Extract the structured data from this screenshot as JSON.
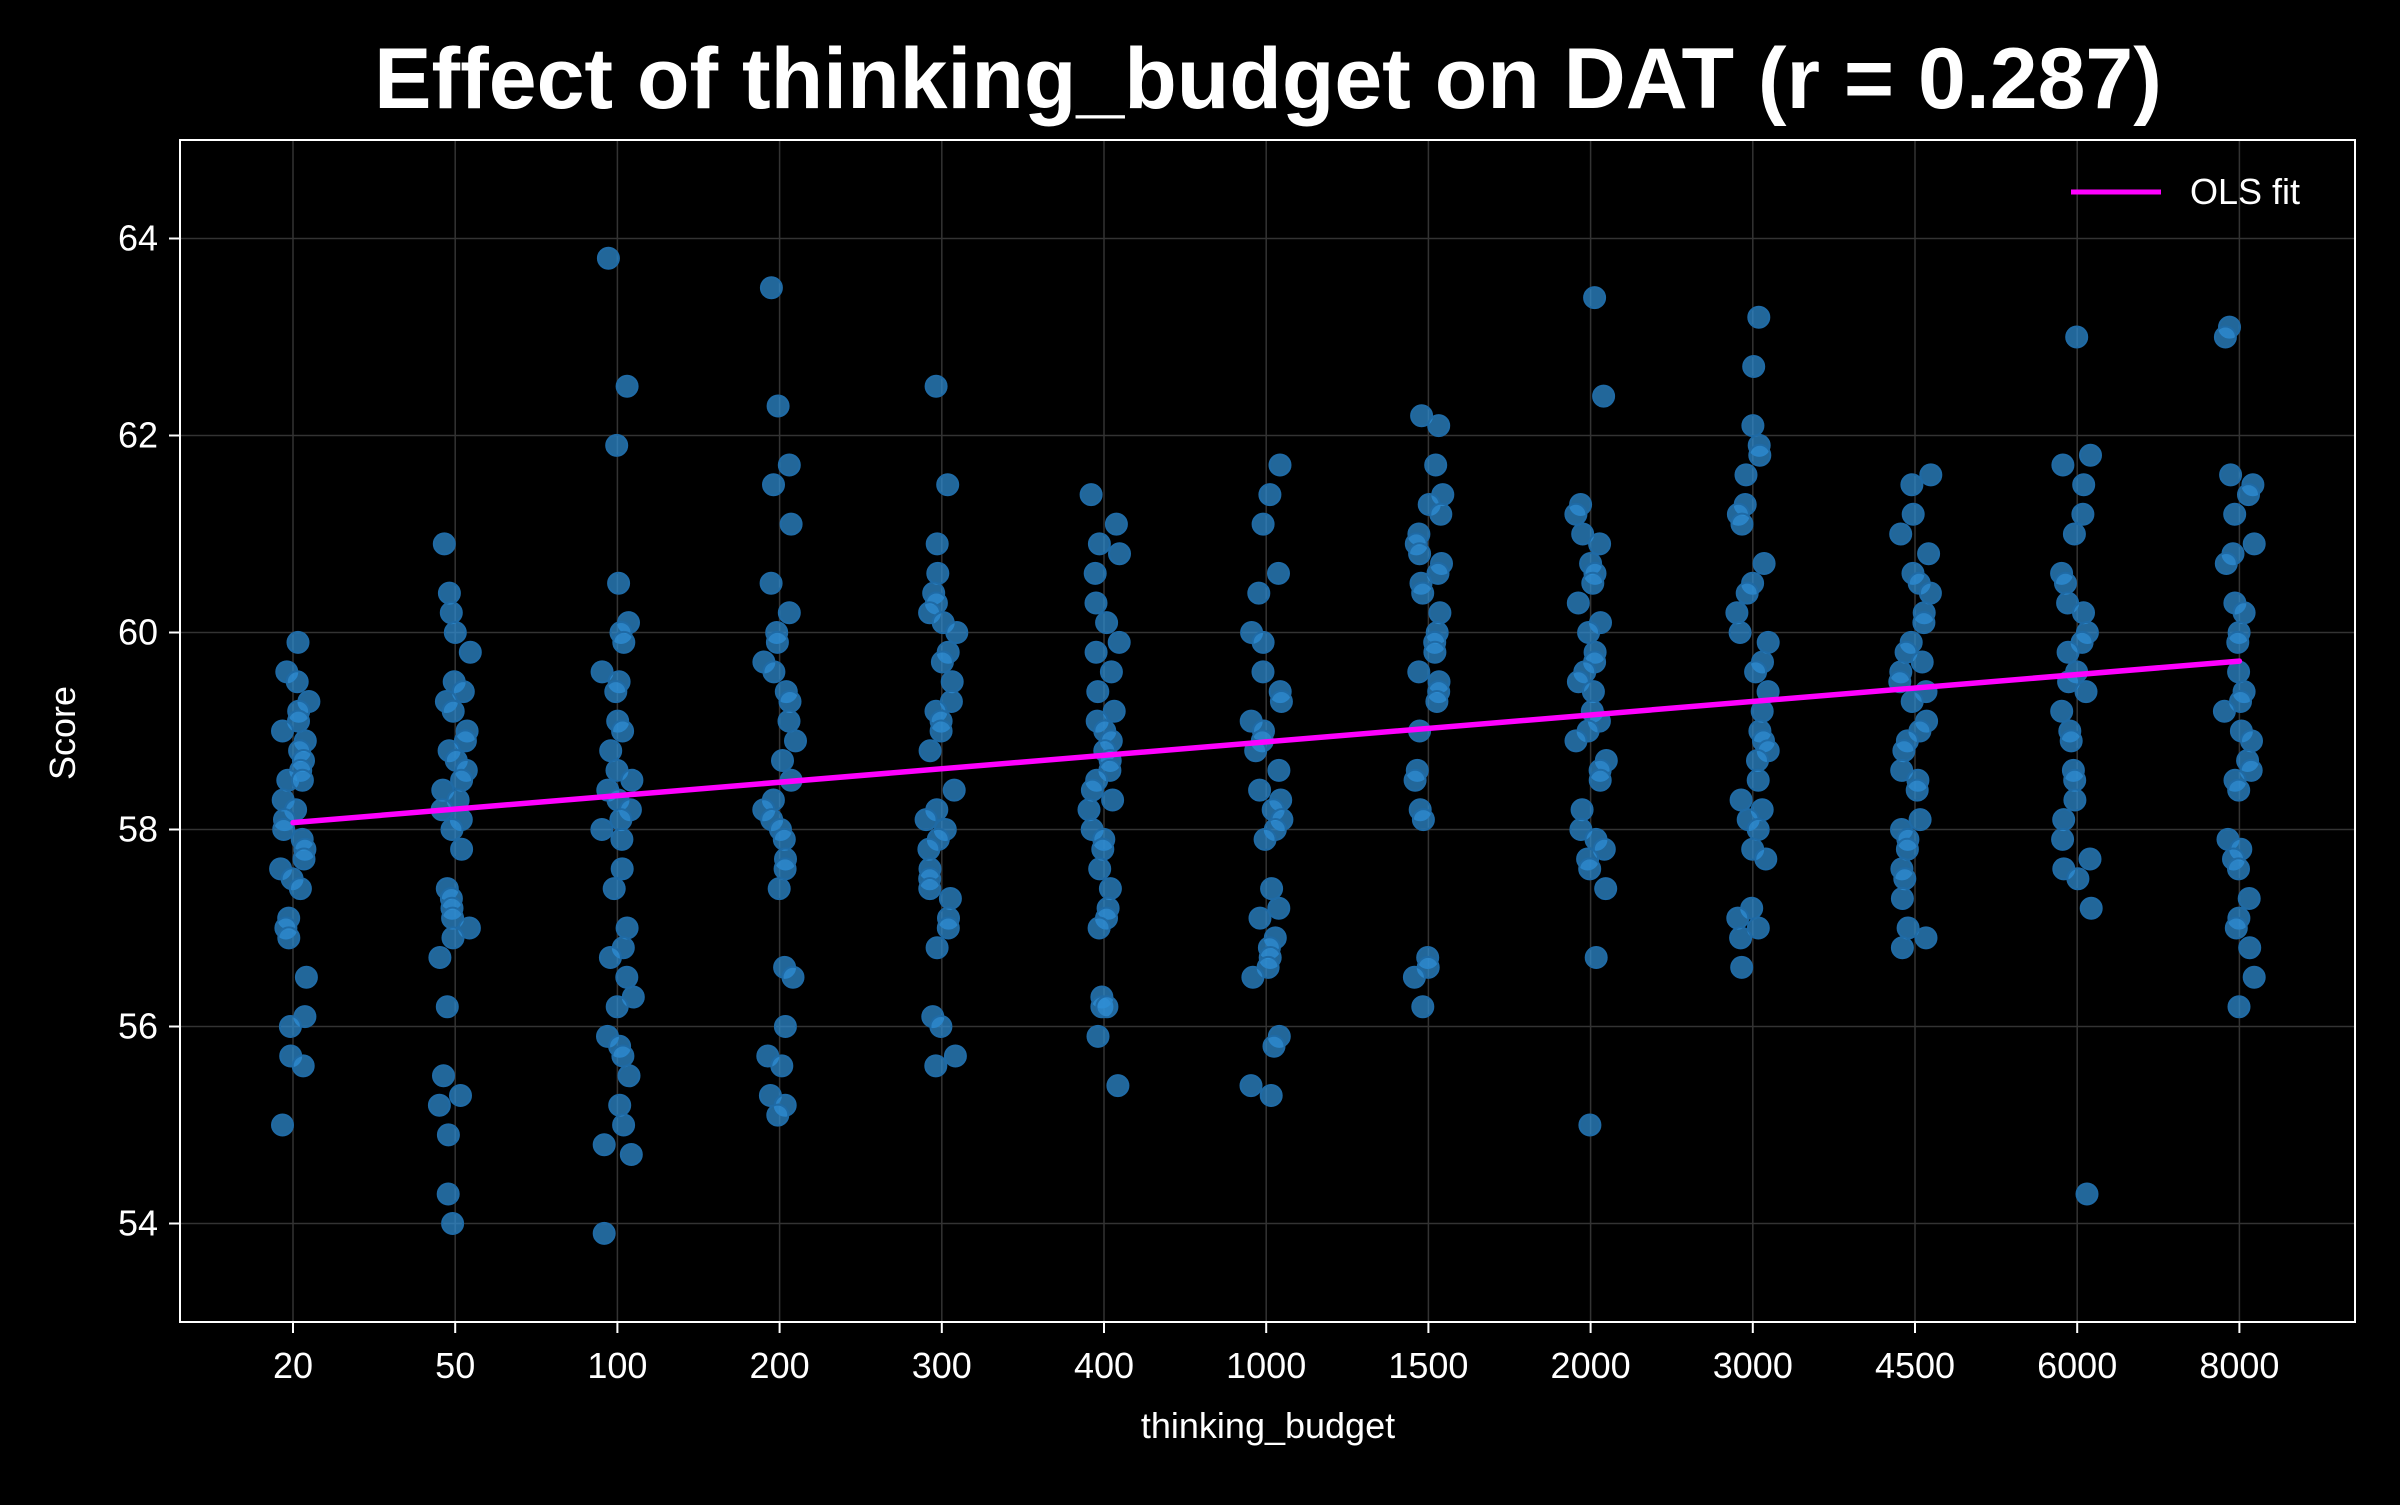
{
  "chart_data": {
    "type": "scatter",
    "title": "Effect of thinking_budget on DAT (r = 0.287)",
    "xlabel": "thinking_budget",
    "ylabel": "Score",
    "categories": [
      "20",
      "50",
      "100",
      "200",
      "300",
      "400",
      "1000",
      "1500",
      "2000",
      "3000",
      "4500",
      "6000",
      "8000"
    ],
    "ylim": [
      53,
      65
    ],
    "yticks": [
      54,
      56,
      58,
      60,
      62,
      64
    ],
    "grid": true,
    "legend": {
      "location": "top-right",
      "entries": [
        "OLS fit"
      ]
    },
    "colors": {
      "background": "#000000",
      "points": "#2f8fd6",
      "fit": "#ff00ff",
      "text": "#ffffff",
      "grid": "#333333"
    },
    "points": [
      {
        "category": "20",
        "values": [
          59.9,
          59.6,
          59.5,
          59.3,
          59.2,
          59.1,
          59.0,
          58.9,
          58.8,
          58.7,
          58.6,
          58.5,
          58.5,
          58.3,
          58.2,
          58.1,
          58.0,
          57.9,
          57.8,
          57.7,
          57.6,
          57.5,
          57.4,
          57.1,
          57.0,
          56.9,
          56.5,
          56.1,
          56.0,
          55.7,
          55.6,
          55.0
        ]
      },
      {
        "category": "50",
        "values": [
          60.9,
          60.4,
          60.2,
          60.0,
          59.8,
          59.5,
          59.4,
          59.3,
          59.2,
          59.0,
          58.9,
          58.8,
          58.7,
          58.6,
          58.5,
          58.4,
          58.3,
          58.2,
          58.1,
          58.0,
          57.8,
          57.4,
          57.3,
          57.2,
          57.1,
          57.0,
          56.9,
          56.7,
          56.2,
          55.5,
          55.3,
          55.2,
          54.9,
          54.3,
          54.0
        ]
      },
      {
        "category": "100",
        "values": [
          63.8,
          62.5,
          61.9,
          60.5,
          60.1,
          60.0,
          59.9,
          59.6,
          59.5,
          59.4,
          59.1,
          59.0,
          58.8,
          58.6,
          58.5,
          58.4,
          58.3,
          58.2,
          58.1,
          58.0,
          57.9,
          57.6,
          57.4,
          57.0,
          56.8,
          56.7,
          56.5,
          56.3,
          56.2,
          55.9,
          55.8,
          55.7,
          55.5,
          55.2,
          55.0,
          54.8,
          54.7,
          53.9
        ]
      },
      {
        "category": "200",
        "values": [
          63.5,
          62.3,
          61.7,
          61.5,
          61.1,
          60.5,
          60.2,
          60.0,
          59.9,
          59.7,
          59.6,
          59.4,
          59.3,
          59.1,
          58.9,
          58.7,
          58.5,
          58.3,
          58.2,
          58.1,
          58.0,
          57.9,
          57.7,
          57.6,
          57.4,
          56.6,
          56.5,
          56.0,
          55.7,
          55.6,
          55.3,
          55.2,
          55.1
        ]
      },
      {
        "category": "300",
        "values": [
          62.5,
          61.5,
          60.9,
          60.6,
          60.4,
          60.3,
          60.2,
          60.1,
          60.0,
          59.8,
          59.7,
          59.5,
          59.3,
          59.2,
          59.1,
          59.0,
          58.8,
          58.4,
          58.2,
          58.1,
          58.0,
          57.9,
          57.8,
          57.6,
          57.5,
          57.4,
          57.3,
          57.1,
          57.0,
          56.8,
          56.1,
          56.0,
          55.7,
          55.6
        ]
      },
      {
        "category": "400",
        "values": [
          61.4,
          61.1,
          60.9,
          60.8,
          60.6,
          60.3,
          60.1,
          59.9,
          59.8,
          59.6,
          59.4,
          59.2,
          59.1,
          59.0,
          58.9,
          58.8,
          58.7,
          58.6,
          58.5,
          58.4,
          58.3,
          58.2,
          58.0,
          57.9,
          57.8,
          57.6,
          57.4,
          57.2,
          57.1,
          57.0,
          56.3,
          56.2,
          56.2,
          55.9,
          55.4
        ]
      },
      {
        "category": "1000",
        "values": [
          61.7,
          61.4,
          61.1,
          60.6,
          60.4,
          60.0,
          59.9,
          59.6,
          59.4,
          59.3,
          59.1,
          59.0,
          58.9,
          58.8,
          58.6,
          58.4,
          58.3,
          58.2,
          58.1,
          58.0,
          57.9,
          57.4,
          57.2,
          57.1,
          56.9,
          56.8,
          56.7,
          56.6,
          56.5,
          55.9,
          55.8,
          55.4,
          55.3
        ]
      },
      {
        "category": "1500",
        "values": [
          62.2,
          62.1,
          61.7,
          61.4,
          61.3,
          61.2,
          61.0,
          60.9,
          60.8,
          60.7,
          60.6,
          60.5,
          60.4,
          60.2,
          60.0,
          59.9,
          59.8,
          59.6,
          59.5,
          59.4,
          59.3,
          59.0,
          58.6,
          58.5,
          58.2,
          58.1,
          56.7,
          56.6,
          56.5,
          56.2
        ]
      },
      {
        "category": "2000",
        "values": [
          63.4,
          62.4,
          61.3,
          61.2,
          61.0,
          60.9,
          60.7,
          60.6,
          60.5,
          60.3,
          60.1,
          60.0,
          59.8,
          59.7,
          59.6,
          59.5,
          59.4,
          59.2,
          59.1,
          59.0,
          58.9,
          58.7,
          58.6,
          58.5,
          58.2,
          58.0,
          57.9,
          57.8,
          57.7,
          57.6,
          57.4,
          56.7,
          55.0
        ]
      },
      {
        "category": "3000",
        "values": [
          63.2,
          62.7,
          62.1,
          61.9,
          61.8,
          61.6,
          61.3,
          61.2,
          61.1,
          60.7,
          60.5,
          60.4,
          60.2,
          60.0,
          59.9,
          59.7,
          59.6,
          59.4,
          59.2,
          59.0,
          58.9,
          58.8,
          58.7,
          58.5,
          58.3,
          58.2,
          58.1,
          58.0,
          57.8,
          57.7,
          57.2,
          57.1,
          57.0,
          56.9,
          56.6
        ]
      },
      {
        "category": "4500",
        "values": [
          61.6,
          61.5,
          61.2,
          61.0,
          60.8,
          60.6,
          60.5,
          60.4,
          60.2,
          60.1,
          59.9,
          59.8,
          59.7,
          59.6,
          59.5,
          59.4,
          59.3,
          59.1,
          59.0,
          58.9,
          58.8,
          58.6,
          58.5,
          58.4,
          58.1,
          58.0,
          57.9,
          57.8,
          57.6,
          57.5,
          57.3,
          57.0,
          56.9,
          56.8
        ]
      },
      {
        "category": "6000",
        "values": [
          63.0,
          61.8,
          61.7,
          61.5,
          61.2,
          61.0,
          60.6,
          60.5,
          60.3,
          60.2,
          60.0,
          59.9,
          59.8,
          59.6,
          59.5,
          59.4,
          59.2,
          59.0,
          58.9,
          58.6,
          58.5,
          58.3,
          58.1,
          57.9,
          57.7,
          57.6,
          57.5,
          57.2,
          54.3
        ]
      },
      {
        "category": "8000",
        "values": [
          63.1,
          63.0,
          61.6,
          61.5,
          61.4,
          61.2,
          60.9,
          60.8,
          60.7,
          60.3,
          60.2,
          60.0,
          59.9,
          59.6,
          59.4,
          59.3,
          59.2,
          59.0,
          58.9,
          58.7,
          58.6,
          58.5,
          58.4,
          57.9,
          57.8,
          57.7,
          57.6,
          57.3,
          57.1,
          57.0,
          56.8,
          56.5,
          56.2
        ]
      }
    ],
    "fit": {
      "label": "OLS fit",
      "x": [
        "20",
        "8000"
      ],
      "y": [
        58.07,
        59.71
      ]
    }
  }
}
